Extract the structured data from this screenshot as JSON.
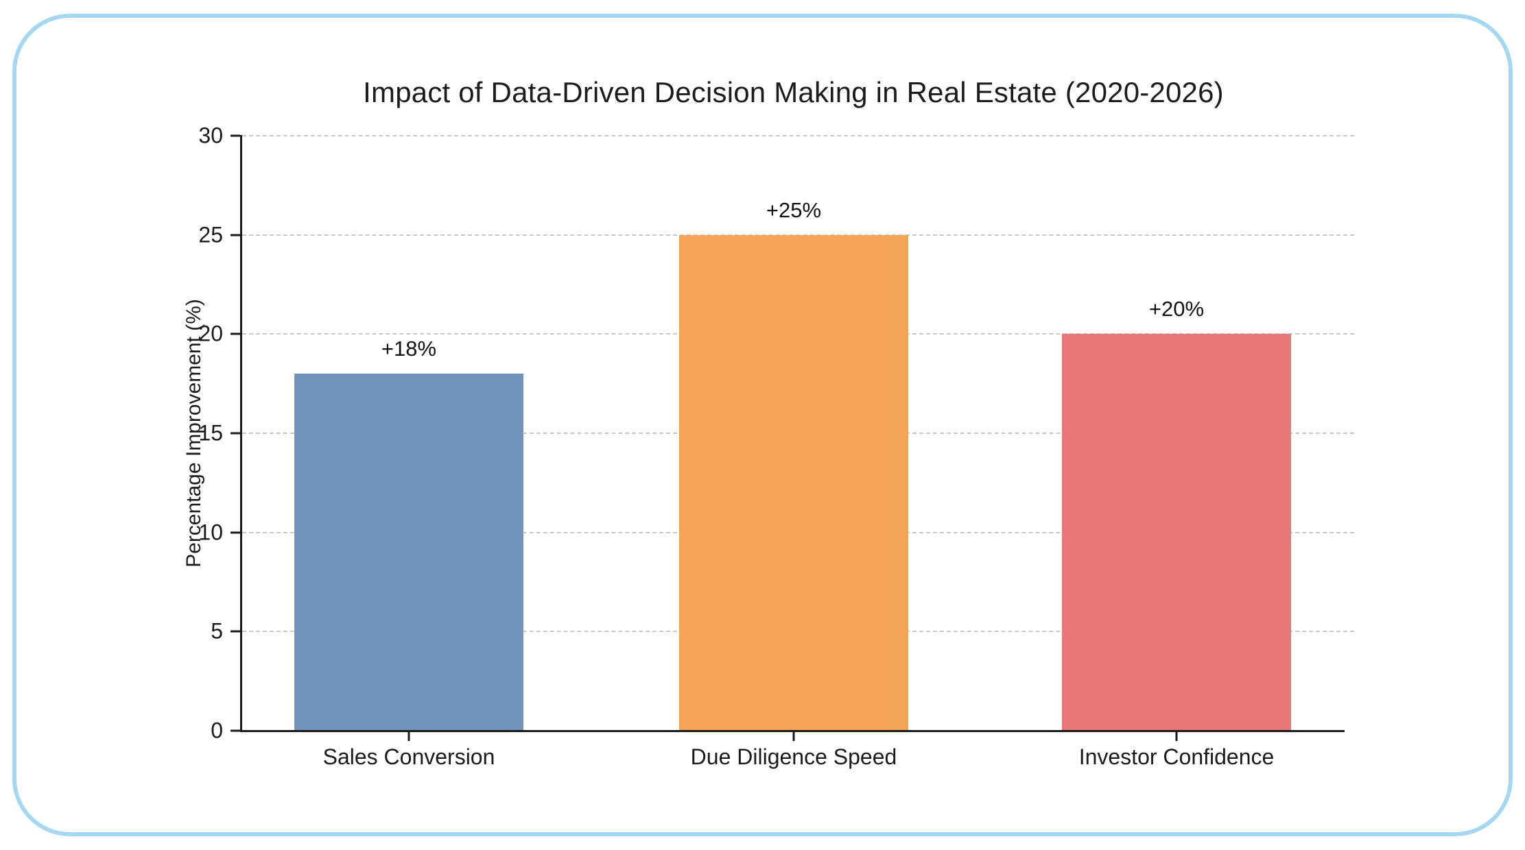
{
  "frame": {
    "border_color": "#a5d7f2",
    "background_color": "#ffffff"
  },
  "chart_data": {
    "type": "bar",
    "title": "Impact of Data-Driven Decision Making in Real Estate (2020-2026)",
    "xlabel": "",
    "ylabel": "Percentage Improvement (%)",
    "categories": [
      "Sales Conversion",
      "Due Diligence Speed",
      "Investor Confidence"
    ],
    "values": [
      18,
      25,
      20
    ],
    "bar_labels": [
      "+18%",
      "+25%",
      "+20%"
    ],
    "bar_colors": [
      "#7094bb",
      "#f2a355",
      "#e77779"
    ],
    "ylim": [
      0,
      30
    ],
    "yticks": [
      0,
      5,
      10,
      15,
      20,
      25,
      30
    ],
    "grid": "horizontal-dashed",
    "gridline_color": "#c7c7c7",
    "legend": "none",
    "axis_color": "#1a1a1a"
  }
}
